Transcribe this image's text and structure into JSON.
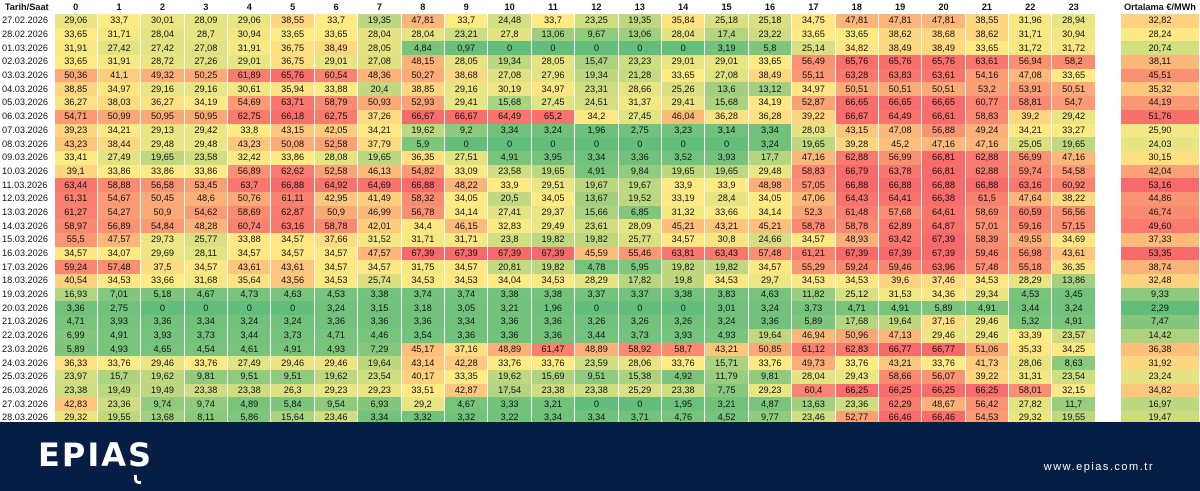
{
  "chart_data": {
    "type": "heatmap",
    "corner_label": "Tarih/Saat",
    "average_label": "Ortalama €/MWh",
    "hours": [
      "0",
      "1",
      "2",
      "3",
      "4",
      "5",
      "6",
      "7",
      "8",
      "9",
      "10",
      "11",
      "12",
      "13",
      "14",
      "15",
      "16",
      "17",
      "18",
      "19",
      "20",
      "21",
      "22",
      "23"
    ],
    "color_scale": {
      "low": "#63be7b",
      "mid": "#ffeb84",
      "high": "#f8696b"
    },
    "rows": [
      {
        "date": "27.02.2026",
        "values": [
          "29,06",
          "33,7",
          "30,01",
          "28,09",
          "29,06",
          "38,55",
          "33,7",
          "19,35",
          "47,81",
          "33,7",
          "24,48",
          "33,7",
          "23,25",
          "19,35",
          "35,84",
          "25,18",
          "25,18",
          "34,75",
          "47,81",
          "47,81",
          "47,81",
          "38,55",
          "31,96",
          "28,94"
        ],
        "avg": "32,82"
      },
      {
        "date": "28.02.2026",
        "values": [
          "33,65",
          "31,71",
          "28,04",
          "28,7",
          "30,94",
          "33,65",
          "33,65",
          "28,04",
          "28,04",
          "23,21",
          "27,8",
          "13,06",
          "9,67",
          "13,06",
          "28,04",
          "17,4",
          "23,22",
          "33,65",
          "33,65",
          "38,62",
          "38,68",
          "38,62",
          "31,71",
          "30,94"
        ],
        "avg": "28,24"
      },
      {
        "date": "01.03.2026",
        "values": [
          "31,91",
          "27,42",
          "27,42",
          "27,08",
          "31,91",
          "36,75",
          "38,49",
          "28,05",
          "4,84",
          "0,97",
          "0",
          "0",
          "0",
          "0",
          "0",
          "3,19",
          "5,8",
          "25,14",
          "34,82",
          "38,49",
          "38,49",
          "33,65",
          "31,72",
          "31,72"
        ],
        "avg": "20,74"
      },
      {
        "date": "02.03.2026",
        "values": [
          "33,65",
          "31,91",
          "28,72",
          "27,26",
          "29,01",
          "36,75",
          "29,01",
          "27,08",
          "48,15",
          "28,05",
          "19,34",
          "28,05",
          "15,47",
          "23,23",
          "29,01",
          "29,01",
          "33,65",
          "56,49",
          "65,76",
          "65,76",
          "65,76",
          "63,61",
          "56,94",
          "58,2"
        ],
        "avg": "38,11"
      },
      {
        "date": "03.03.2026",
        "values": [
          "50,36",
          "41,1",
          "49,32",
          "50,25",
          "61,89",
          "65,76",
          "60,54",
          "48,36",
          "50,27",
          "38,68",
          "27,08",
          "27,96",
          "19,34",
          "21,28",
          "33,65",
          "27,08",
          "38,49",
          "55,11",
          "63,28",
          "63,83",
          "63,61",
          "54,16",
          "47,08",
          "33,65"
        ],
        "avg": "45,51"
      },
      {
        "date": "04.03.2026",
        "values": [
          "38,85",
          "34,97",
          "29,16",
          "29,16",
          "30,61",
          "35,94",
          "33,88",
          "20,4",
          "38,85",
          "29,16",
          "30,19",
          "34,97",
          "23,31",
          "28,66",
          "25,26",
          "13,6",
          "13,12",
          "34,97",
          "50,51",
          "50,51",
          "50,51",
          "53,2",
          "53,91",
          "50,51"
        ],
        "avg": "35,32"
      },
      {
        "date": "05.03.2026",
        "values": [
          "36,27",
          "38,03",
          "36,27",
          "34,19",
          "54,69",
          "63,71",
          "58,79",
          "50,93",
          "52,93",
          "29,41",
          "15,68",
          "27,45",
          "24,51",
          "31,37",
          "29,41",
          "15,68",
          "34,19",
          "52,87",
          "66,65",
          "66,65",
          "66,65",
          "60,77",
          "58,81",
          "54,7"
        ],
        "avg": "44,19"
      },
      {
        "date": "06.03.2026",
        "values": [
          "54,71",
          "50,99",
          "50,95",
          "50,95",
          "62,75",
          "66,18",
          "62,75",
          "37,26",
          "66,67",
          "66,67",
          "64,49",
          "65,2",
          "34,2",
          "27,45",
          "46,04",
          "36,28",
          "36,28",
          "39,22",
          "66,67",
          "64,49",
          "66,61",
          "58,83",
          "39,2",
          "29,42"
        ],
        "avg": "51,76"
      },
      {
        "date": "07.03.2026",
        "values": [
          "39,23",
          "34,21",
          "29,13",
          "29,42",
          "33,8",
          "43,15",
          "42,05",
          "34,21",
          "19,62",
          "9,2",
          "3,34",
          "3,24",
          "1,96",
          "2,75",
          "3,23",
          "3,14",
          "3,34",
          "28,03",
          "43,15",
          "47,08",
          "56,88",
          "49,24",
          "34,21",
          "33,27"
        ],
        "avg": "25,90"
      },
      {
        "date": "08.03.2026",
        "values": [
          "43,23",
          "38,44",
          "29,48",
          "29,48",
          "43,23",
          "50,08",
          "52,58",
          "37,79",
          "5,9",
          "0",
          "0",
          "0",
          "0",
          "0",
          "0",
          "0",
          "3,24",
          "19,65",
          "39,28",
          "45,2",
          "47,16",
          "47,16",
          "25,05",
          "19,65"
        ],
        "avg": "24,03"
      },
      {
        "date": "09.03.2026",
        "values": [
          "33,41",
          "27,49",
          "19,65",
          "23,58",
          "32,42",
          "33,86",
          "28,08",
          "19,65",
          "36,35",
          "27,51",
          "4,91",
          "3,95",
          "3,34",
          "3,36",
          "3,52",
          "3,93",
          "17,7",
          "47,16",
          "62,88",
          "56,99",
          "66,81",
          "62,88",
          "56,99",
          "47,16"
        ],
        "avg": "30,15"
      },
      {
        "date": "10.03.2026",
        "values": [
          "39,1",
          "33,86",
          "33,86",
          "33,86",
          "56,89",
          "62,62",
          "52,58",
          "46,13",
          "54,82",
          "33,09",
          "23,58",
          "19,65",
          "4,91",
          "9,84",
          "19,65",
          "19,65",
          "29,48",
          "58,83",
          "66,79",
          "63,78",
          "66,81",
          "62,88",
          "59,74",
          "54,58"
        ],
        "avg": "42,04"
      },
      {
        "date": "11.03.2026",
        "values": [
          "63,44",
          "58,88",
          "56,58",
          "53,45",
          "63,7",
          "66,88",
          "64,92",
          "64,69",
          "66,88",
          "48,22",
          "33,9",
          "29,51",
          "19,67",
          "19,67",
          "33,9",
          "33,9",
          "48,98",
          "57,05",
          "66,88",
          "66,88",
          "66,88",
          "66,88",
          "63,16",
          "60,92"
        ],
        "avg": "53,16"
      },
      {
        "date": "12.03.2026",
        "values": [
          "61,31",
          "54,67",
          "50,45",
          "48,6",
          "50,76",
          "61,11",
          "42,95",
          "41,49",
          "58,32",
          "34,05",
          "20,5",
          "34,05",
          "13,67",
          "19,52",
          "33,19",
          "28,4",
          "34,05",
          "47,06",
          "64,43",
          "64,41",
          "66,38",
          "61,5",
          "47,64",
          "38,22"
        ],
        "avg": "44,86"
      },
      {
        "date": "13.03.2026",
        "values": [
          "61,27",
          "54,27",
          "50,9",
          "54,62",
          "58,69",
          "62,87",
          "50,9",
          "46,99",
          "56,78",
          "34,14",
          "27,41",
          "29,37",
          "15,66",
          "6,85",
          "31,32",
          "33,66",
          "34,14",
          "52,3",
          "61,48",
          "57,68",
          "64,61",
          "58,69",
          "60,59",
          "56,56"
        ],
        "avg": "46,74"
      },
      {
        "date": "14.03.2026",
        "values": [
          "58,97",
          "56,89",
          "54,84",
          "48,28",
          "60,74",
          "63,16",
          "58,78",
          "42,01",
          "34,4",
          "46,15",
          "32,83",
          "29,49",
          "23,61",
          "28,09",
          "45,21",
          "43,21",
          "45,21",
          "58,78",
          "58,78",
          "62,89",
          "64,87",
          "57,01",
          "59,16",
          "57,15"
        ],
        "avg": "49,60"
      },
      {
        "date": "15.03.2026",
        "values": [
          "55,5",
          "47,57",
          "29,73",
          "25,77",
          "33,88",
          "34,57",
          "37,66",
          "31,52",
          "31,71",
          "31,71",
          "23,8",
          "19,82",
          "19,82",
          "25,77",
          "34,57",
          "30,8",
          "24,66",
          "34,57",
          "48,93",
          "63,42",
          "67,39",
          "58,39",
          "49,55",
          "34,69"
        ],
        "avg": "37,33"
      },
      {
        "date": "16.03.2026",
        "values": [
          "34,57",
          "34,07",
          "29,69",
          "28,11",
          "34,57",
          "34,57",
          "34,57",
          "47,57",
          "67,39",
          "67,39",
          "67,39",
          "67,39",
          "45,59",
          "55,46",
          "63,81",
          "63,43",
          "57,48",
          "61,21",
          "67,39",
          "67,39",
          "67,39",
          "59,46",
          "56,98",
          "43,61"
        ],
        "avg": "53,35"
      },
      {
        "date": "17.03.2026",
        "values": [
          "59,24",
          "57,48",
          "37,5",
          "34,57",
          "43,61",
          "43,61",
          "34,57",
          "34,57",
          "31,75",
          "34,57",
          "20,81",
          "19,82",
          "4,78",
          "5,95",
          "19,82",
          "19,82",
          "34,57",
          "55,29",
          "59,24",
          "59,46",
          "63,96",
          "57,48",
          "55,18",
          "36,35"
        ],
        "avg": "38,74"
      },
      {
        "date": "18.03.2026",
        "values": [
          "40,54",
          "34,53",
          "33,66",
          "31,68",
          "35,64",
          "43,56",
          "34,53",
          "25,74",
          "34,53",
          "34,53",
          "34,04",
          "34,53",
          "28,29",
          "17,82",
          "19,8",
          "34,53",
          "29,7",
          "34,53",
          "34,53",
          "39,6",
          "37,46",
          "34,53",
          "28,29",
          "13,86"
        ],
        "avg": "32,48"
      },
      {
        "date": "19.03.2026",
        "values": [
          "16,93",
          "7,01",
          "5,18",
          "4,67",
          "4,73",
          "4,63",
          "4,53",
          "3,38",
          "3,74",
          "3,74",
          "3,38",
          "3,38",
          "3,37",
          "3,37",
          "3,38",
          "3,83",
          "4,63",
          "11,82",
          "25,12",
          "31,53",
          "34,36",
          "29,34",
          "4,53",
          "3,45"
        ],
        "avg": "9,33"
      },
      {
        "date": "20.03.2026",
        "values": [
          "3,36",
          "2,75",
          "0",
          "0",
          "0",
          "0",
          "3,24",
          "3,15",
          "3,18",
          "3,05",
          "3,21",
          "1,96",
          "0",
          "0",
          "0",
          "3,01",
          "3,24",
          "3,73",
          "4,71",
          "4,91",
          "5,89",
          "4,91",
          "3,44",
          "3,24"
        ],
        "avg": "2,29"
      },
      {
        "date": "21.03.2026",
        "values": [
          "4,71",
          "3,93",
          "3,36",
          "3,34",
          "3,24",
          "3,24",
          "3,36",
          "3,36",
          "3,36",
          "3,34",
          "3,36",
          "3,36",
          "3,26",
          "3,26",
          "3,26",
          "3,24",
          "3,36",
          "5,89",
          "17,68",
          "19,64",
          "37,16",
          "29,46",
          "5,32",
          "4,91"
        ],
        "avg": "7,47"
      },
      {
        "date": "22.03.2026",
        "values": [
          "6,99",
          "4,91",
          "3,93",
          "3,73",
          "3,44",
          "3,73",
          "4,71",
          "4,46",
          "3,54",
          "3,36",
          "3,36",
          "3,36",
          "3,44",
          "3,73",
          "3,93",
          "4,93",
          "19,64",
          "46,94",
          "50,96",
          "47,13",
          "29,46",
          "29,46",
          "33,39",
          "23,57"
        ],
        "avg": "14,42"
      },
      {
        "date": "23.03.2026",
        "values": [
          "5,89",
          "4,93",
          "4,65",
          "4,54",
          "4,61",
          "4,91",
          "4,93",
          "7,29",
          "45,17",
          "37,16",
          "48,89",
          "61,47",
          "48,89",
          "58,92",
          "58,7",
          "43,21",
          "50,85",
          "61,12",
          "62,83",
          "66,77",
          "66,77",
          "51,06",
          "35,33",
          "34,25"
        ],
        "avg": "36,38"
      },
      {
        "date": "24.03.2026",
        "values": [
          "36,33",
          "33,76",
          "29,46",
          "33,76",
          "27,49",
          "29,46",
          "29,46",
          "19,64",
          "43,14",
          "42,28",
          "33,76",
          "33,76",
          "23,59",
          "28,06",
          "33,76",
          "15,71",
          "33,76",
          "49,73",
          "33,76",
          "43,21",
          "33,76",
          "41,73",
          "28,06",
          "8,63"
        ],
        "avg": "31,92"
      },
      {
        "date": "25.03.2026",
        "values": [
          "23,97",
          "15,7",
          "19,62",
          "9,81",
          "9,51",
          "9,51",
          "19,62",
          "23,54",
          "40,17",
          "33,35",
          "19,62",
          "15,69",
          "9,51",
          "15,38",
          "4,92",
          "11,79",
          "9,81",
          "28,04",
          "29,43",
          "58,66",
          "56,07",
          "39,22",
          "31,31",
          "23,54"
        ],
        "avg": "23,24"
      },
      {
        "date": "26.03.2026",
        "values": [
          "23,38",
          "19,49",
          "19,49",
          "23,38",
          "23,38",
          "26,3",
          "29,23",
          "29,23",
          "33,51",
          "42,87",
          "17,54",
          "23,38",
          "23,38",
          "25,29",
          "23,38",
          "7,75",
          "29,23",
          "60,4",
          "66,25",
          "66,25",
          "66,25",
          "66,25",
          "58,01",
          "32,15"
        ],
        "avg": "34,82"
      },
      {
        "date": "27.03.2026",
        "values": [
          "42,83",
          "23,36",
          "9,74",
          "9,74",
          "4,89",
          "5,84",
          "9,54",
          "6,93",
          "29,2",
          "4,67",
          "3,33",
          "3,21",
          "0",
          "0",
          "1,95",
          "3,21",
          "4,87",
          "13,63",
          "23,36",
          "62,29",
          "48,67",
          "56,42",
          "27,82",
          "11,7"
        ],
        "avg": "16,97"
      },
      {
        "date": "28.03.2026",
        "values": [
          "29,32",
          "19,55",
          "13,68",
          "8,11",
          "5,86",
          "15,64",
          "23,46",
          "3,34",
          "3,32",
          "3,32",
          "3,22",
          "3,34",
          "3,34",
          "3,71",
          "4,76",
          "4,52",
          "9,77",
          "23,46",
          "52,77",
          "66,46",
          "66,46",
          "54,53",
          "29,32",
          "19,55"
        ],
        "avg": "19,47"
      }
    ]
  },
  "footer": {
    "logo": "EPIAS",
    "website": "www.epias.com.tr",
    "background": "#061d44"
  }
}
